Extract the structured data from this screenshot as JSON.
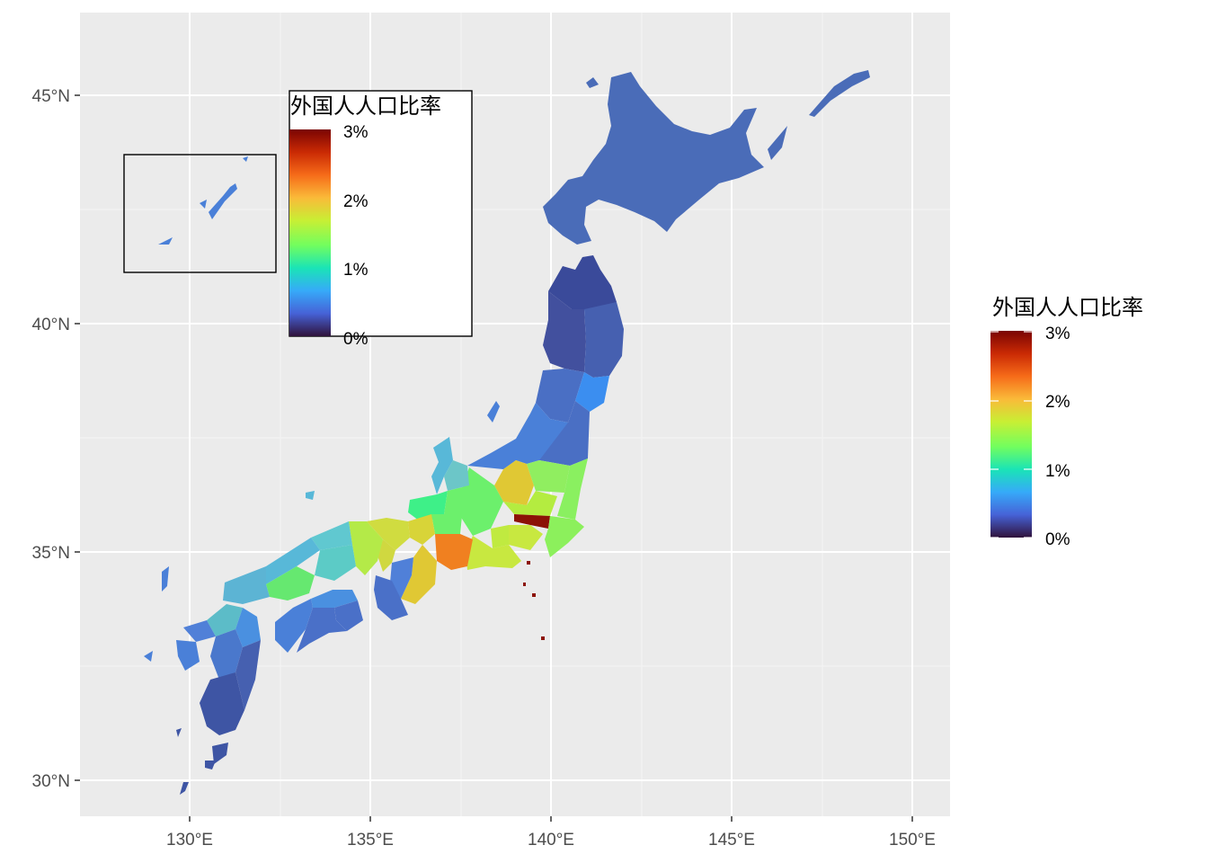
{
  "map": {
    "x_axis_labels": [
      "130°E",
      "135°E",
      "140°E",
      "145°E",
      "150°E"
    ],
    "y_axis_labels": [
      "30°N",
      "35°N",
      "40°N",
      "45°N"
    ],
    "panel_background": "#ebebeb",
    "grid_color": "#ffffff"
  },
  "legend": {
    "title": "外国人人口比率",
    "ticks": [
      "3%",
      "2%",
      "1%",
      "0%"
    ],
    "colormap": [
      "#30123b",
      "#4662d7",
      "#36aaf9",
      "#1ae4b6",
      "#72fe5e",
      "#c8ef34",
      "#faba39",
      "#f66b19",
      "#ca2a04",
      "#7a0403"
    ]
  },
  "inset_legend": {
    "title": "外国人人口比率",
    "ticks": [
      "3%",
      "2%",
      "1%",
      "0%"
    ]
  }
}
